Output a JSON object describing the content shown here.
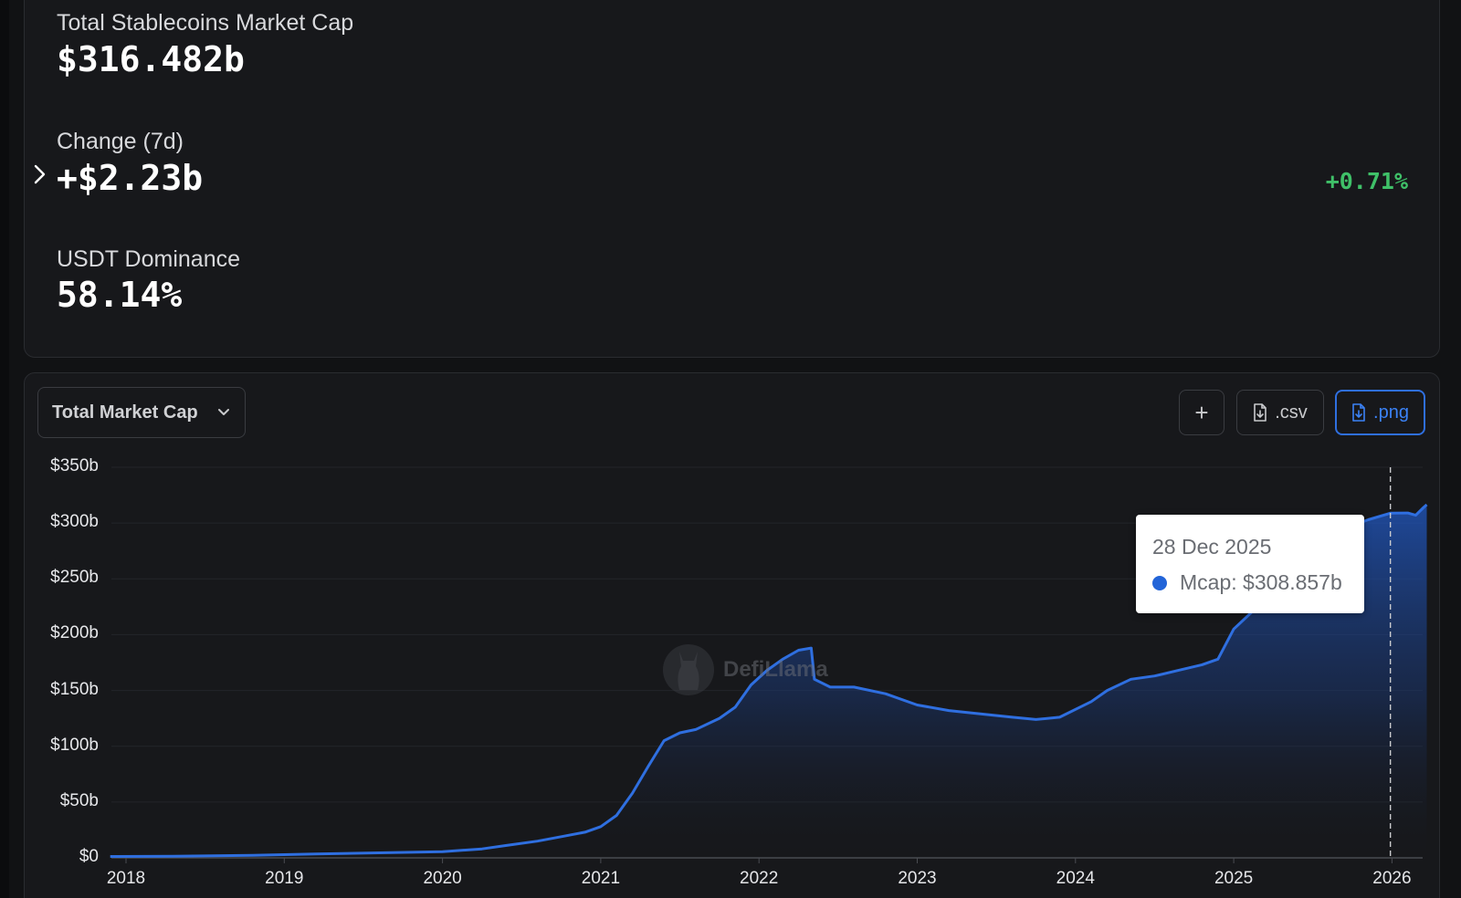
{
  "stats": {
    "total_mcap_label": "Total Stablecoins Market Cap",
    "total_mcap_value": "$316.482b",
    "change_label": "Change (7d)",
    "change_value": "+$2.23b",
    "change_pct": "+0.71%",
    "dominance_label": "USDT Dominance",
    "dominance_value": "58.14%"
  },
  "toolbar": {
    "metric_selected": "Total Market Cap",
    "add_label": "+",
    "csv_label": ".csv",
    "png_label": ".png"
  },
  "watermark": {
    "text": "DefiLlama"
  },
  "tooltip": {
    "date": "28 Dec 2025",
    "series_label": "Mcap: $308.857b"
  },
  "colors": {
    "line": "#2f6fe0",
    "positive": "#3fc068",
    "accent_button": "#2f6fe0"
  },
  "chart_data": {
    "type": "area",
    "title": "",
    "xlabel": "",
    "ylabel": "",
    "ylim": [
      0,
      350
    ],
    "yticks": [
      "$0",
      "$50b",
      "$100b",
      "$150b",
      "$200b",
      "$250b",
      "$300b",
      "$350b"
    ],
    "xticks": [
      "2018",
      "2019",
      "2020",
      "2021",
      "2022",
      "2023",
      "2024",
      "2025",
      "2026"
    ],
    "grid": true,
    "legend": "none",
    "series": [
      {
        "name": "Mcap",
        "points": [
          [
            2017.9,
            1.2
          ],
          [
            2018.3,
            1.5
          ],
          [
            2018.8,
            2.3
          ],
          [
            2019.2,
            3.5
          ],
          [
            2019.6,
            4.5
          ],
          [
            2020.0,
            5.5
          ],
          [
            2020.25,
            8
          ],
          [
            2020.4,
            11
          ],
          [
            2020.6,
            15
          ],
          [
            2020.75,
            19
          ],
          [
            2020.9,
            23
          ],
          [
            2021.0,
            28
          ],
          [
            2021.1,
            38
          ],
          [
            2021.2,
            58
          ],
          [
            2021.3,
            82
          ],
          [
            2021.4,
            105
          ],
          [
            2021.5,
            112
          ],
          [
            2021.6,
            115
          ],
          [
            2021.75,
            125
          ],
          [
            2021.85,
            135
          ],
          [
            2021.95,
            155
          ],
          [
            2022.05,
            168
          ],
          [
            2022.15,
            178
          ],
          [
            2022.25,
            186
          ],
          [
            2022.33,
            188
          ],
          [
            2022.35,
            160
          ],
          [
            2022.45,
            153
          ],
          [
            2022.6,
            153
          ],
          [
            2022.8,
            147
          ],
          [
            2023.0,
            137
          ],
          [
            2023.2,
            132
          ],
          [
            2023.4,
            129
          ],
          [
            2023.6,
            126
          ],
          [
            2023.75,
            124
          ],
          [
            2023.9,
            126
          ],
          [
            2024.1,
            140
          ],
          [
            2024.2,
            150
          ],
          [
            2024.35,
            160
          ],
          [
            2024.5,
            163
          ],
          [
            2024.65,
            168
          ],
          [
            2024.8,
            173
          ],
          [
            2024.9,
            178
          ],
          [
            2025.0,
            205
          ],
          [
            2025.15,
            225
          ],
          [
            2025.3,
            250
          ],
          [
            2025.5,
            275
          ],
          [
            2025.7,
            295
          ],
          [
            2025.85,
            303
          ],
          [
            2025.99,
            308.857
          ],
          [
            2026.1,
            309
          ],
          [
            2026.15,
            307
          ],
          [
            2026.2,
            314
          ],
          [
            2026.22,
            316.482
          ]
        ]
      }
    ],
    "cursor_x": 2025.99
  }
}
